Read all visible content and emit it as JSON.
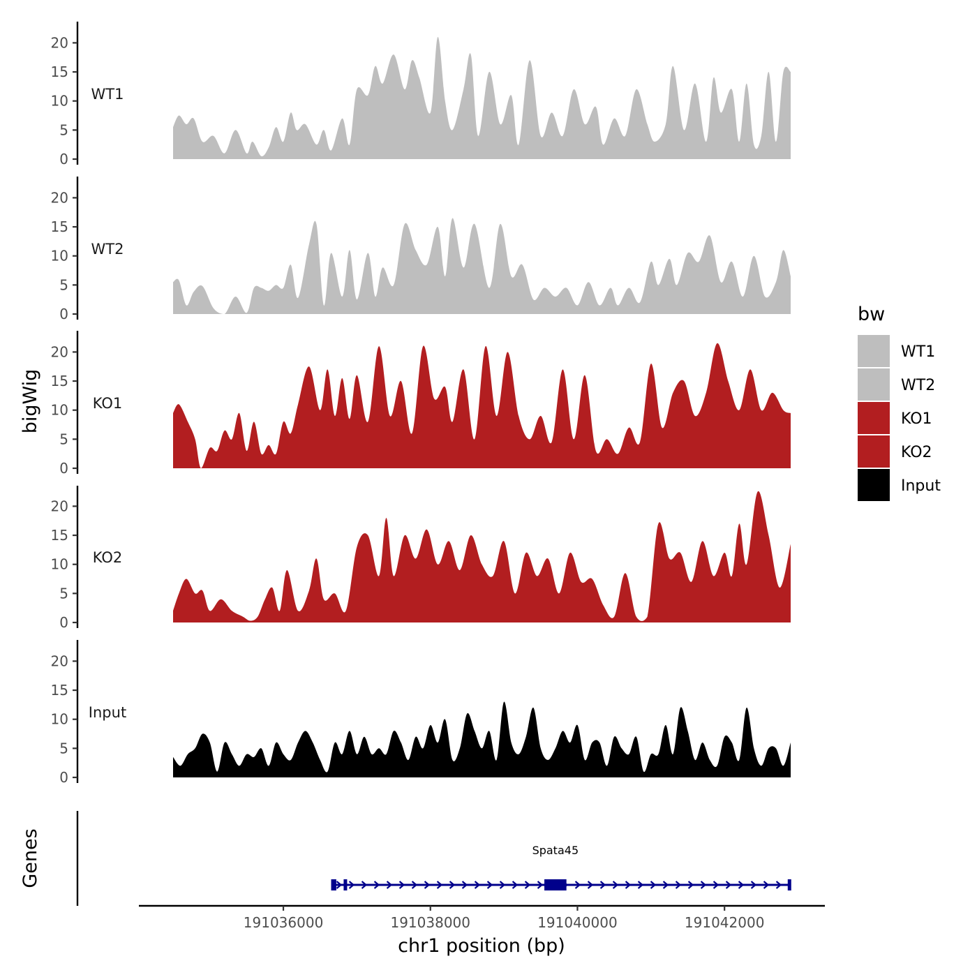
{
  "chart_data": {
    "type": "area",
    "y_axis_title": "bigWig",
    "x_axis_title": "chr1 position (bp)",
    "x_range": [
      191034500,
      191042900
    ],
    "x_ticks": [
      191036000,
      191038000,
      191040000,
      191042000
    ],
    "x_tick_labels": [
      "191036000",
      "191038000",
      "191040000",
      "191042000"
    ],
    "ylim": [
      0,
      23
    ],
    "y_ticks": [
      0,
      5,
      10,
      15,
      20
    ],
    "y_tick_labels": [
      "0",
      "5",
      "10",
      "15",
      "20"
    ],
    "legend": {
      "title": "bw",
      "position": "right",
      "entries": [
        {
          "label": "WT1",
          "color": "#bebebe"
        },
        {
          "label": "WT2",
          "color": "#bebebe"
        },
        {
          "label": "KO1",
          "color": "#b21e20"
        },
        {
          "label": "KO2",
          "color": "#b21e20"
        },
        {
          "label": "Input",
          "color": "#000000"
        }
      ]
    },
    "series": [
      {
        "name": "WT1",
        "color": "#bebebe",
        "x": [
          191034500,
          191034580,
          191034680,
          191034780,
          191034900,
          191035050,
          191035200,
          191035350,
          191035500,
          191035580,
          191035700,
          191035800,
          191035900,
          191036000,
          191036100,
          191036180,
          191036300,
          191036450,
          191036550,
          191036650,
          191036800,
          191036900,
          191037000,
          191037150,
          191037250,
          191037350,
          191037500,
          191037650,
          191037750,
          191037850,
          191038000,
          191038100,
          191038200,
          191038300,
          191038450,
          191038550,
          191038650,
          191038800,
          191038950,
          191039100,
          191039200,
          191039350,
          191039500,
          191039650,
          191039800,
          191039950,
          191040100,
          191040250,
          191040350,
          191040500,
          191040650,
          191040800,
          191040950,
          191041050,
          191041200,
          191041300,
          191041450,
          191041600,
          191041750,
          191041850,
          191041950,
          191042100,
          191042200,
          191042300,
          191042400,
          191042500,
          191042600,
          191042700,
          191042800,
          191042900
        ],
        "y": [
          5.5,
          7.5,
          6,
          7,
          3,
          4,
          1,
          5,
          1,
          3,
          0.5,
          2,
          5.5,
          3,
          8,
          5,
          6,
          2.5,
          5,
          1.5,
          7,
          2.5,
          12,
          11,
          16,
          13,
          18,
          12,
          17,
          14,
          8,
          21,
          10,
          5,
          12,
          18,
          4,
          15,
          6,
          11,
          2.5,
          17,
          4,
          8,
          4,
          12,
          6,
          9,
          2.5,
          7,
          4,
          12,
          6,
          3,
          6,
          16,
          5,
          13,
          3,
          14,
          8,
          12,
          3,
          13,
          2.5,
          4,
          15,
          3,
          15,
          15
        ]
      },
      {
        "name": "WT2",
        "color": "#bebebe",
        "x": [
          191034500,
          191034580,
          191034680,
          191034780,
          191034900,
          191035050,
          191035200,
          191035350,
          191035500,
          191035600,
          191035700,
          191035800,
          191035900,
          191036000,
          191036100,
          191036200,
          191036350,
          191036450,
          191036550,
          191036650,
          191036800,
          191036900,
          191037000,
          191037150,
          191037250,
          191037350,
          191037500,
          191037650,
          191037800,
          191037950,
          191038100,
          191038200,
          191038300,
          191038450,
          191038600,
          191038800,
          191038950,
          191039100,
          191039250,
          191039400,
          191039550,
          191039700,
          191039850,
          191040000,
          191040150,
          191040300,
          191040450,
          191040550,
          191040700,
          191040850,
          191041000,
          191041100,
          191041250,
          191041350,
          191041500,
          191041650,
          191041800,
          191041950,
          191042100,
          191042250,
          191042400,
          191042550,
          191042700,
          191042800,
          191042900
        ],
        "y": [
          5.5,
          5.8,
          1.5,
          3.8,
          4.8,
          1,
          0,
          3,
          0.2,
          4.5,
          4.5,
          4,
          5,
          4.5,
          8.5,
          2.8,
          12,
          15.5,
          1.5,
          10.5,
          3,
          11,
          2.5,
          10.5,
          3,
          8,
          5,
          15.5,
          11,
          8.5,
          15,
          6.5,
          16.5,
          8,
          15.5,
          4.5,
          15.5,
          6.5,
          8.5,
          2.5,
          4.5,
          3,
          4.5,
          1.5,
          5.5,
          1.5,
          4.5,
          1.5,
          4.5,
          2,
          9,
          5,
          9.5,
          5,
          10.5,
          9,
          13.5,
          5.5,
          9,
          3,
          10,
          3,
          5.5,
          11,
          6.5
        ]
      },
      {
        "name": "KO1",
        "color": "#b21e20",
        "x": [
          191034500,
          191034580,
          191034700,
          191034800,
          191034880,
          191035000,
          191035100,
          191035200,
          191035300,
          191035400,
          191035500,
          191035600,
          191035700,
          191035800,
          191035900,
          191036000,
          191036100,
          191036200,
          191036350,
          191036500,
          191036600,
          191036700,
          191036800,
          191036900,
          191037000,
          191037150,
          191037300,
          191037450,
          191037600,
          191037750,
          191037900,
          191038050,
          191038200,
          191038300,
          191038450,
          191038600,
          191038750,
          191038900,
          191039050,
          191039200,
          191039350,
          191039500,
          191039650,
          191039800,
          191039950,
          191040100,
          191040250,
          191040400,
          191040550,
          191040700,
          191040850,
          191041000,
          191041150,
          191041300,
          191041450,
          191041600,
          191041750,
          191041900,
          191042050,
          191042200,
          191042350,
          191042500,
          191042650,
          191042800,
          191042900
        ],
        "y": [
          9.5,
          11,
          8,
          5,
          0,
          3.5,
          3,
          6.5,
          5,
          9.5,
          3,
          8,
          2.5,
          4,
          2.5,
          8,
          6,
          11,
          17.5,
          10,
          17,
          9,
          15.5,
          8.5,
          16,
          8,
          21,
          9,
          15,
          6,
          21,
          12,
          14,
          8,
          17,
          5,
          21,
          9,
          20,
          9,
          5,
          9,
          4.5,
          17,
          5,
          16,
          3,
          5,
          2.5,
          7,
          4.5,
          18,
          7,
          13,
          15,
          9,
          13,
          21.5,
          15,
          10,
          17,
          10,
          13,
          10,
          9.5
        ]
      },
      {
        "name": "KO2",
        "color": "#b21e20",
        "x": [
          191034500,
          191034580,
          191034680,
          191034800,
          191034900,
          191035000,
          191035150,
          191035300,
          191035450,
          191035550,
          191035650,
          191035750,
          191035850,
          191035950,
          191036050,
          191036200,
          191036350,
          191036450,
          191036550,
          191036700,
          191036850,
          191037000,
          191037150,
          191037300,
          191037400,
          191037500,
          191037650,
          191037800,
          191037950,
          191038100,
          191038250,
          191038400,
          191038550,
          191038700,
          191038850,
          191039000,
          191039150,
          191039300,
          191039450,
          191039600,
          191039750,
          191039900,
          191040050,
          191040200,
          191040350,
          191040500,
          191040650,
          191040800,
          191040950,
          191041100,
          191041250,
          191041400,
          191041550,
          191041700,
          191041850,
          191042000,
          191042100,
          191042200,
          191042300,
          191042450,
          191042600,
          191042750,
          191042900
        ],
        "y": [
          2,
          5,
          7.5,
          5,
          5.5,
          2,
          4,
          2,
          1,
          0.3,
          1,
          4,
          6,
          2,
          9,
          2,
          5.5,
          11,
          4,
          5,
          2,
          13,
          15,
          8,
          18,
          8,
          15,
          11,
          16,
          10,
          14,
          9,
          15,
          10,
          8,
          14,
          5,
          12,
          8,
          11,
          5,
          12,
          7,
          7.5,
          3,
          1,
          8.5,
          1,
          1,
          17,
          11,
          12,
          7,
          14,
          8,
          12,
          8,
          17,
          10,
          22.5,
          15,
          6,
          13.5
        ]
      },
      {
        "name": "Input",
        "color": "#000000",
        "x": [
          191034500,
          191034600,
          191034700,
          191034800,
          191034900,
          191035000,
          191035100,
          191035200,
          191035300,
          191035400,
          191035500,
          191035600,
          191035700,
          191035800,
          191035900,
          191036000,
          191036100,
          191036200,
          191036300,
          191036400,
          191036500,
          191036600,
          191036700,
          191036800,
          191036900,
          191037000,
          191037100,
          191037200,
          191037300,
          191037400,
          191037500,
          191037600,
          191037700,
          191037800,
          191037900,
          191038000,
          191038100,
          191038200,
          191038300,
          191038400,
          191038500,
          191038600,
          191038700,
          191038800,
          191038900,
          191039000,
          191039100,
          191039200,
          191039300,
          191039400,
          191039500,
          191039600,
          191039700,
          191039800,
          191039900,
          191040000,
          191040100,
          191040200,
          191040300,
          191040400,
          191040500,
          191040600,
          191040700,
          191040800,
          191040900,
          191041000,
          191041100,
          191041200,
          191041300,
          191041400,
          191041500,
          191041600,
          191041700,
          191041800,
          191041900,
          191042000,
          191042100,
          191042200,
          191042300,
          191042400,
          191042500,
          191042600,
          191042700,
          191042800,
          191042900
        ],
        "y": [
          3.5,
          2,
          4,
          5,
          7.5,
          6,
          1,
          6,
          4,
          2,
          4,
          3.5,
          5,
          2,
          6,
          4,
          3,
          6,
          8,
          6,
          3,
          1,
          6,
          4,
          8,
          4,
          7,
          4,
          5,
          4,
          8,
          6,
          3,
          7,
          5,
          9,
          6,
          10,
          3,
          5,
          11,
          8,
          5,
          8,
          3,
          13,
          6,
          4,
          7,
          12,
          5,
          3,
          5,
          8,
          6,
          9,
          3,
          6,
          6,
          2,
          7,
          5,
          4,
          7,
          1,
          4,
          4,
          9,
          4,
          12,
          8,
          3,
          6,
          3,
          2,
          7,
          6,
          3,
          12,
          5,
          2,
          5,
          5,
          2,
          6
        ]
      }
    ],
    "genes": {
      "title": "Genes",
      "transcript": {
        "name": "Spata45",
        "start": 191036650,
        "end": 191042900,
        "strand": "+",
        "color": "#00008b"
      },
      "exons": [
        {
          "start": 191036650,
          "end": 191036720
        },
        {
          "start": 191036820,
          "end": 191036860
        },
        {
          "start": 191039550,
          "end": 191039850
        },
        {
          "start": 191042860,
          "end": 191042900
        }
      ]
    }
  }
}
